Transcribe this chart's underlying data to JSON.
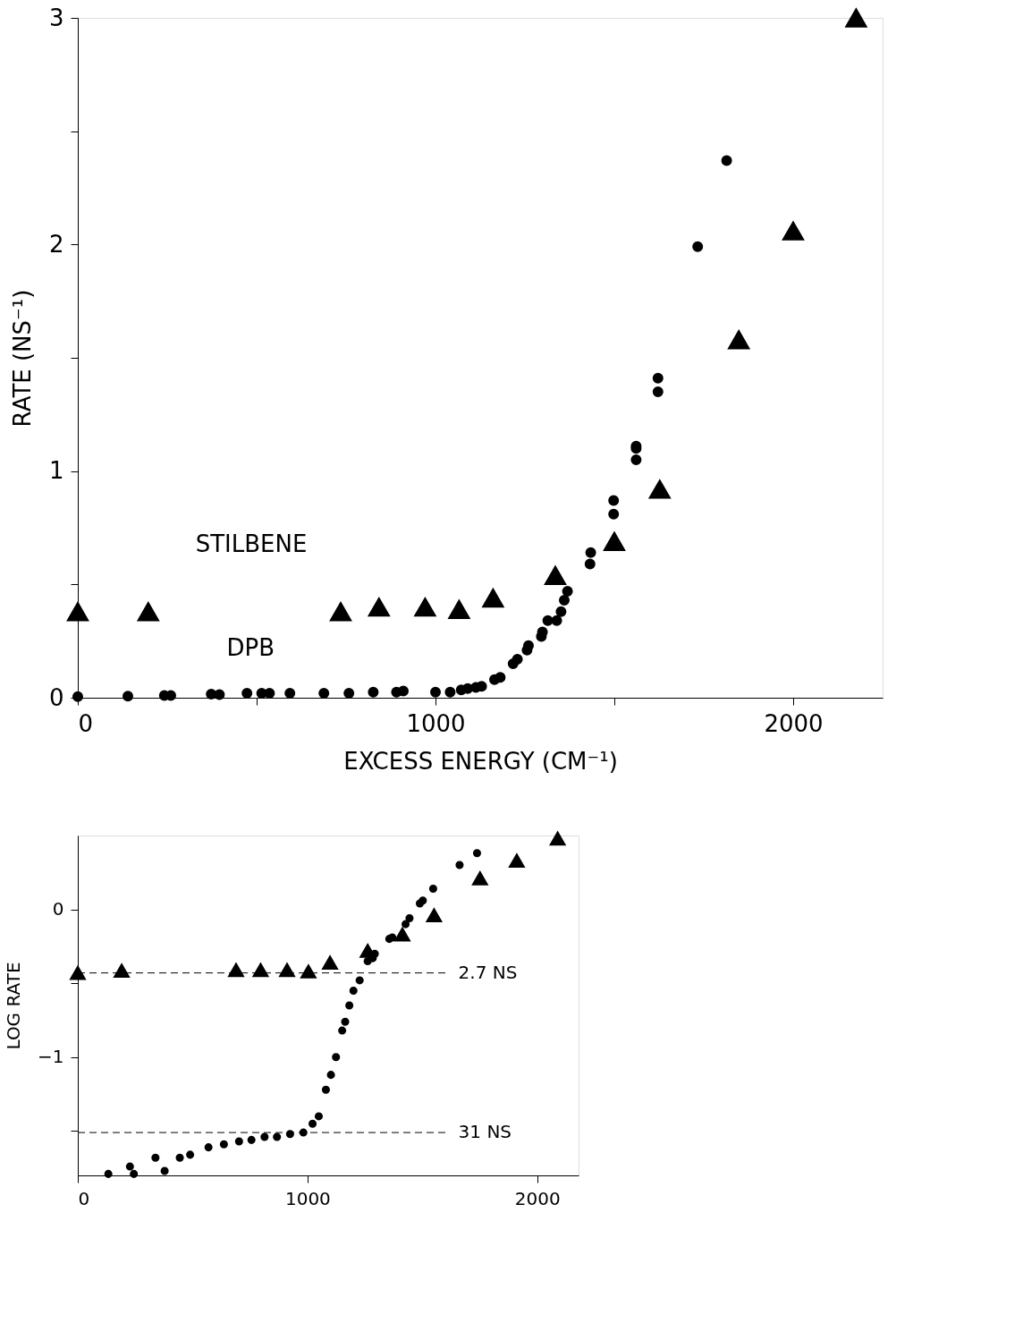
{
  "chart_data": [
    {
      "type": "scatter",
      "xlabel": "EXCESS ENERGY (CM⁻¹)",
      "ylabel": "RATE (NS⁻¹)",
      "xlim": [
        0,
        2250
      ],
      "ylim": [
        0,
        3
      ],
      "xticks": [
        0,
        {
          "value": 500,
          "label": null
        },
        1000,
        {
          "value": 1500,
          "label": null
        },
        2000
      ],
      "yticks": [
        0,
        {
          "value": 0.5,
          "label": null
        },
        1,
        {
          "value": 1.5,
          "label": null
        },
        2,
        {
          "value": 2.5,
          "label": null
        },
        3
      ],
      "grid": false,
      "series": [
        {
          "name": "STILBENE",
          "color": "#000000",
          "marker": "triangle",
          "x": [
            0,
            197,
            735,
            842,
            971,
            1066,
            1161,
            1335,
            1500,
            1627,
            1848,
            2000,
            2176
          ],
          "values": [
            0.38,
            0.38,
            0.38,
            0.4,
            0.4,
            0.39,
            0.44,
            0.54,
            0.69,
            0.92,
            1.58,
            2.06,
            3.0
          ]
        },
        {
          "name": "DPB",
          "color": "#000000",
          "marker": "circle",
          "x": [
            0,
            140,
            242,
            260,
            373,
            396,
            473,
            514,
            536,
            593,
            688,
            758,
            826,
            891,
            910,
            1000,
            1041,
            1072,
            1090,
            1113,
            1129,
            1165,
            1181,
            1217,
            1229,
            1256,
            1260,
            1296,
            1299,
            1314,
            1339,
            1351,
            1360,
            1369,
            1432,
            1434,
            1498,
            1498,
            1561,
            1561,
            1561,
            1622,
            1622,
            1733,
            1814
          ],
          "values": [
            0.005,
            0.007,
            0.01,
            0.01,
            0.016,
            0.014,
            0.02,
            0.02,
            0.02,
            0.02,
            0.02,
            0.02,
            0.025,
            0.025,
            0.03,
            0.025,
            0.025,
            0.035,
            0.04,
            0.045,
            0.05,
            0.08,
            0.09,
            0.15,
            0.17,
            0.21,
            0.23,
            0.27,
            0.29,
            0.34,
            0.34,
            0.38,
            0.43,
            0.47,
            0.59,
            0.64,
            0.81,
            0.87,
            1.11,
            1.1,
            1.05,
            1.41,
            1.35,
            1.99,
            2.37
          ]
        }
      ]
    },
    {
      "type": "scatter",
      "ylabel": "LOG RATE",
      "xlim": [
        0,
        2180
      ],
      "ylim": [
        -1.8,
        0.5
      ],
      "xticks": [
        0,
        1000,
        2000
      ],
      "yticks": [
        {
          "value": -1.5,
          "label": null
        },
        -1,
        {
          "value": -0.5,
          "label": null
        },
        0
      ],
      "grid": false,
      "ref_lines": [
        {
          "axis": "y",
          "value": -0.43,
          "label": "2.7 NS",
          "line_style": "dashed"
        },
        {
          "axis": "y",
          "value": -1.51,
          "label": "31 NS",
          "line_style": "dashed"
        }
      ],
      "series": [
        {
          "color": "#000000",
          "marker": "triangle",
          "x": [
            0,
            191,
            689,
            796,
            911,
            1004,
            1098,
            1262,
            1413,
            1551,
            1751,
            1911,
            2089
          ],
          "values": [
            -0.43,
            -0.415,
            -0.41,
            -0.41,
            -0.41,
            -0.42,
            -0.36,
            -0.28,
            -0.17,
            -0.04,
            0.21,
            0.33,
            0.48
          ]
        },
        {
          "color": "#000000",
          "marker": "circle",
          "x": [
            133,
            227,
            244,
            338,
            378,
            444,
            489,
            569,
            636,
            702,
            756,
            813,
            867,
            924,
            982,
            1022,
            1049,
            1080,
            1102,
            1124,
            1151,
            1164,
            1182,
            1200,
            1227,
            1262,
            1284,
            1293,
            1356,
            1369,
            1427,
            1444,
            1489,
            1502,
            1547,
            1662,
            1738
          ],
          "values": [
            -1.79,
            -1.74,
            -1.79,
            -1.68,
            -1.77,
            -1.68,
            -1.66,
            -1.61,
            -1.59,
            -1.57,
            -1.56,
            -1.54,
            -1.54,
            -1.52,
            -1.51,
            -1.45,
            -1.4,
            -1.22,
            -1.12,
            -1.0,
            -0.82,
            -0.76,
            -0.65,
            -0.55,
            -0.48,
            -0.35,
            -0.33,
            -0.3,
            -0.2,
            -0.19,
            -0.1,
            -0.06,
            0.04,
            0.06,
            0.14,
            0.3,
            0.38
          ]
        }
      ]
    }
  ]
}
